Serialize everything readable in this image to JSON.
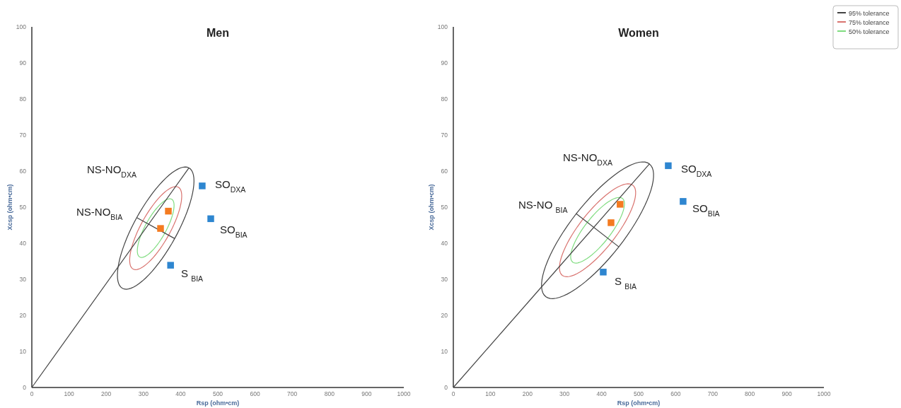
{
  "chart_data": [
    {
      "type": "scatter",
      "title": "Men",
      "xlabel": "Rsp (ohm•cm)",
      "ylabel": "Xcsp (ohm•cm)",
      "xlim": [
        0,
        1000
      ],
      "ylim": [
        0,
        100
      ],
      "xticks": [
        0,
        100,
        200,
        300,
        400,
        500,
        600,
        700,
        800,
        900,
        1000
      ],
      "yticks": [
        0,
        10,
        20,
        30,
        40,
        50,
        60,
        70,
        80,
        90,
        100
      ],
      "series": [
        {
          "type": "line",
          "color": "#444444",
          "marker": "none",
          "x": [
            0,
            422.4
          ],
          "values": [
            0,
            60.9
          ]
        },
        {
          "type": "line",
          "color": "#444444",
          "marker": "none",
          "x": [
            282.0,
            384.0
          ],
          "values": [
            47.1,
            41.3
          ]
        },
        {
          "color": "#2e86d0",
          "marker": "square",
          "x": [
            458,
            481,
            373
          ],
          "values": [
            55.9,
            46.8,
            33.9
          ]
        },
        {
          "color": "#f47b20",
          "marker": "square",
          "x": [
            367,
            346
          ],
          "values": [
            48.9,
            44.1
          ]
        }
      ],
      "annotations": [
        "NS-NO$_{DXA}$",
        "NS-NO$_{BIA}$",
        "SO$_{DXA}$",
        "SO$_{BIA}$",
        "S $_{BIA}$"
      ]
    },
    {
      "type": "scatter",
      "title": "Women",
      "xlabel": "Rsp (ohm•cm)",
      "ylabel": "Xcsp (ohm•cm)",
      "xlim": [
        0,
        1000
      ],
      "ylim": [
        0,
        100
      ],
      "xticks": [
        0,
        100,
        200,
        300,
        400,
        500,
        600,
        700,
        800,
        900,
        1000
      ],
      "yticks": [
        0,
        10,
        20,
        30,
        40,
        50,
        60,
        70,
        80,
        90,
        100
      ],
      "series": [
        {
          "type": "line",
          "color": "#444444",
          "marker": "none",
          "x": [
            0,
            529.1
          ],
          "values": [
            0,
            62.0
          ]
        },
        {
          "type": "line",
          "color": "#444444",
          "marker": "none",
          "x": [
            331.8,
            446.6
          ],
          "values": [
            48.2,
            39.0
          ]
        },
        {
          "color": "#2e86d0",
          "marker": "square",
          "x": [
            580,
            620,
            404.5
          ],
          "values": [
            61.5,
            51.6,
            32.0
          ]
        },
        {
          "color": "#f47b20",
          "marker": "square",
          "x": [
            450,
            425.5
          ],
          "values": [
            50.8,
            45.7
          ]
        }
      ],
      "annotations": [
        "NS-NO$_{DXA}$",
        "NS-NO $_{BIA}$",
        "SO$_{DXA}$",
        "SO$_{BIA}$",
        "S $_{BIA}$",
        "95% tolerance",
        "75% tolerance",
        "50% tolerance"
      ]
    }
  ]
}
